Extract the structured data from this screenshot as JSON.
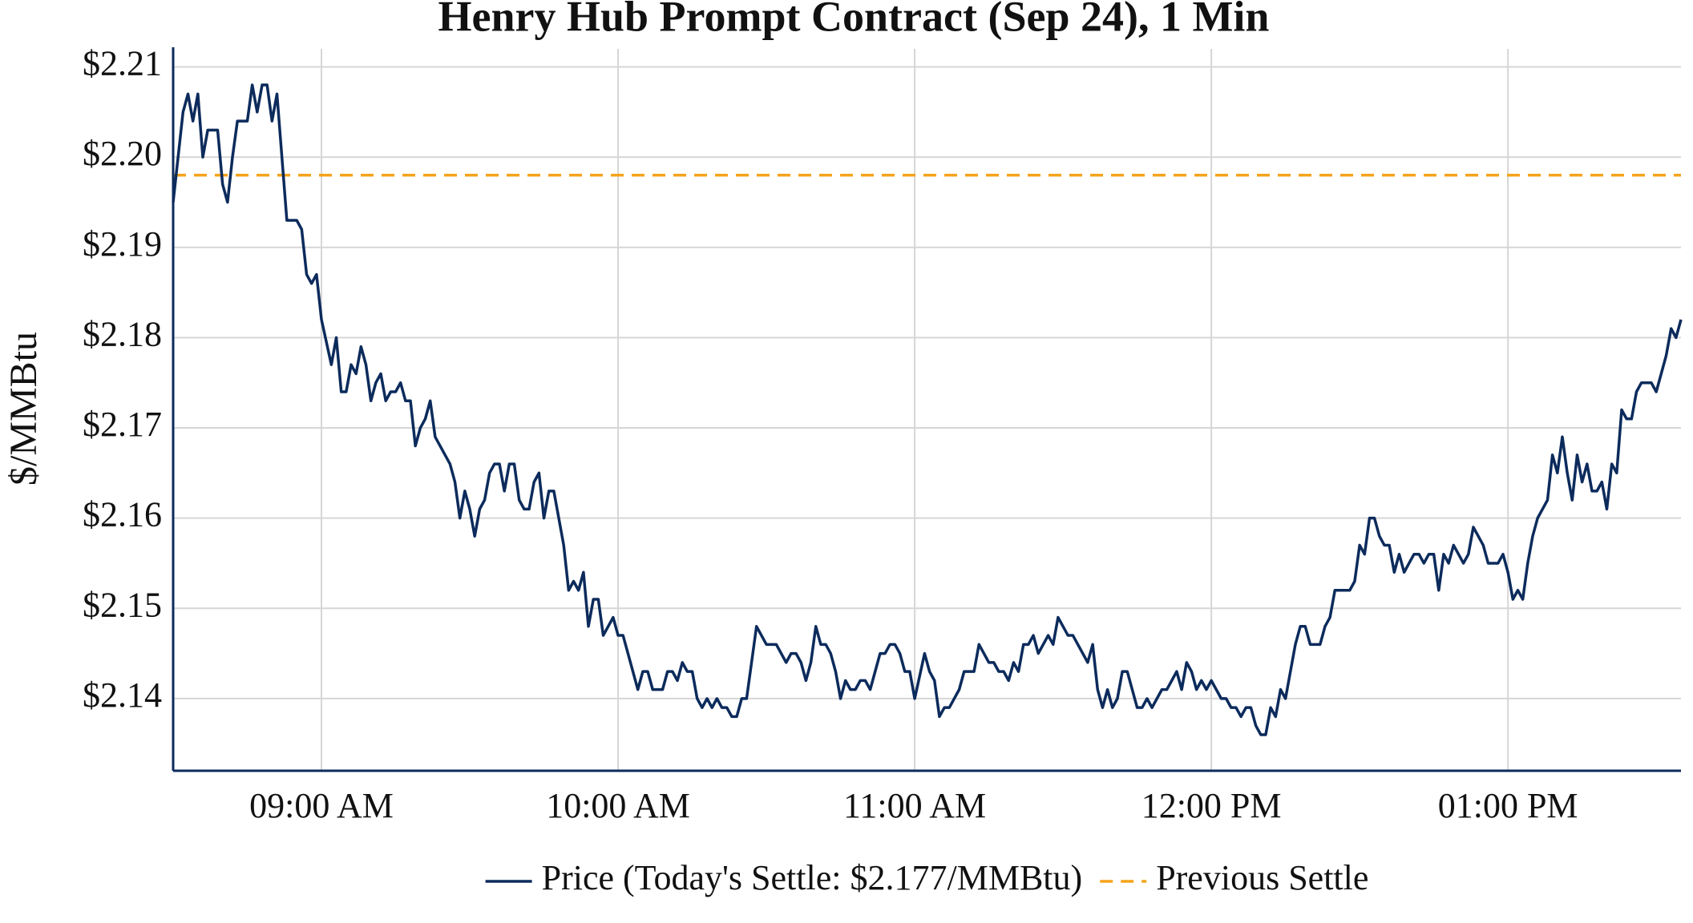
{
  "chart_data": {
    "type": "line",
    "title": "Henry Hub Prompt Contract (Sep 24), 1 Min",
    "y_label": "$/MMBtu",
    "x": [
      "08:30",
      "08:32",
      "08:33",
      "08:34",
      "08:35",
      "08:36",
      "08:37",
      "08:39",
      "08:40",
      "08:41",
      "08:42",
      "08:43",
      "08:45",
      "08:46",
      "08:47",
      "08:48",
      "08:49",
      "08:50",
      "08:51",
      "08:53",
      "08:55",
      "08:56",
      "08:57",
      "08:58",
      "08:59",
      "09:00",
      "09:02",
      "09:03",
      "09:04",
      "09:05",
      "09:06",
      "09:07",
      "09:08",
      "09:09",
      "09:10",
      "09:11",
      "09:12",
      "09:13",
      "09:14",
      "09:15",
      "09:16",
      "09:17",
      "09:18",
      "09:19",
      "09:20",
      "09:21",
      "09:22",
      "09:23",
      "09:24",
      "09:26",
      "09:27",
      "09:28",
      "09:29",
      "09:30",
      "09:31",
      "09:32",
      "09:33",
      "09:34",
      "09:35",
      "09:36",
      "09:37",
      "09:38",
      "09:39",
      "09:40",
      "09:41",
      "09:42",
      "09:43",
      "09:44",
      "09:45",
      "09:46",
      "09:47",
      "09:49",
      "09:50",
      "09:51",
      "09:52",
      "09:53",
      "09:54",
      "09:55",
      "09:56",
      "09:57",
      "09:59",
      "10:00",
      "10:01",
      "10:02",
      "10:03",
      "10:04",
      "10:05",
      "10:06",
      "10:07",
      "10:09",
      "10:10",
      "10:11",
      "10:12",
      "10:13",
      "10:14",
      "10:15",
      "10:16",
      "10:17",
      "10:18",
      "10:19",
      "10:20",
      "10:21",
      "10:22",
      "10:23",
      "10:24",
      "10:25",
      "10:26",
      "10:28",
      "10:30",
      "10:32",
      "10:34",
      "10:35",
      "10:36",
      "10:37",
      "10:38",
      "10:39",
      "10:40",
      "10:41",
      "10:42",
      "10:43",
      "10:44",
      "10:45",
      "10:46",
      "10:47",
      "10:48",
      "10:49",
      "10:50",
      "10:51",
      "10:52",
      "10:53",
      "10:54",
      "10:55",
      "10:56",
      "10:57",
      "10:58",
      "10:59",
      "11:00",
      "11:02",
      "11:03",
      "11:04",
      "11:05",
      "11:06",
      "11:07",
      "11:09",
      "11:10",
      "11:12",
      "11:13",
      "11:14",
      "11:15",
      "11:16",
      "11:17",
      "11:18",
      "11:19",
      "11:20",
      "11:21",
      "11:22",
      "11:23",
      "11:24",
      "11:25",
      "11:26",
      "11:27",
      "11:28",
      "11:29",
      "11:30",
      "11:31",
      "11:32",
      "11:35",
      "11:36",
      "11:37",
      "11:38",
      "11:39",
      "11:40",
      "11:41",
      "11:42",
      "11:43",
      "11:45",
      "11:46",
      "11:47",
      "11:48",
      "11:50",
      "11:51",
      "11:52",
      "11:53",
      "11:54",
      "11:55",
      "11:56",
      "11:57",
      "11:58",
      "11:59",
      "12:00",
      "12:02",
      "12:03",
      "12:04",
      "12:05",
      "12:06",
      "12:07",
      "12:08",
      "12:09",
      "12:10",
      "12:11",
      "12:12",
      "12:13",
      "12:14",
      "12:15",
      "12:17",
      "12:18",
      "12:19",
      "12:20",
      "12:22",
      "12:23",
      "12:24",
      "12:25",
      "12:27",
      "12:28",
      "12:29",
      "12:30",
      "12:31",
      "12:32",
      "12:33",
      "12:34",
      "12:35",
      "12:36",
      "12:37",
      "12:38",
      "12:39",
      "12:40",
      "12:41",
      "12:42",
      "12:43",
      "12:44",
      "12:45",
      "12:46",
      "12:47",
      "12:48",
      "12:49",
      "12:50",
      "12:51",
      "12:52",
      "12:53",
      "12:54",
      "12:55",
      "12:56",
      "12:58",
      "12:59",
      "13:00",
      "13:01",
      "13:02",
      "13:03",
      "13:04",
      "13:05",
      "13:06",
      "13:08",
      "13:09",
      "13:10",
      "13:11",
      "13:12",
      "13:13",
      "13:14",
      "13:15",
      "13:16",
      "13:17",
      "13:18",
      "13:19",
      "13:20",
      "13:21",
      "13:22",
      "13:23",
      "13:24",
      "13:25",
      "13:26",
      "13:27",
      "13:29",
      "13:30",
      "13:32",
      "13:33",
      "13:34",
      "13:35"
    ],
    "series": [
      {
        "name": "Price (Today's Settle: $2.177/MMBtu)",
        "color": "#0c2b5c",
        "values": [
          2.195,
          2.205,
          2.207,
          2.204,
          2.207,
          2.2,
          2.203,
          2.203,
          2.197,
          2.195,
          2.2,
          2.204,
          2.204,
          2.208,
          2.205,
          2.208,
          2.208,
          2.204,
          2.207,
          2.193,
          2.193,
          2.192,
          2.187,
          2.186,
          2.187,
          2.182,
          2.177,
          2.18,
          2.174,
          2.174,
          2.177,
          2.176,
          2.179,
          2.177,
          2.173,
          2.175,
          2.176,
          2.173,
          2.174,
          2.174,
          2.175,
          2.173,
          2.173,
          2.168,
          2.17,
          2.171,
          2.173,
          2.169,
          2.168,
          2.166,
          2.164,
          2.16,
          2.163,
          2.161,
          2.158,
          2.161,
          2.162,
          2.165,
          2.166,
          2.166,
          2.163,
          2.166,
          2.166,
          2.162,
          2.161,
          2.161,
          2.164,
          2.165,
          2.16,
          2.163,
          2.163,
          2.157,
          2.152,
          2.153,
          2.152,
          2.154,
          2.148,
          2.151,
          2.151,
          2.147,
          2.149,
          2.147,
          2.147,
          2.145,
          2.143,
          2.141,
          2.143,
          2.143,
          2.141,
          2.141,
          2.143,
          2.143,
          2.142,
          2.144,
          2.143,
          2.143,
          2.14,
          2.139,
          2.14,
          2.139,
          2.14,
          2.139,
          2.139,
          2.138,
          2.138,
          2.14,
          2.14,
          2.148,
          2.146,
          2.146,
          2.144,
          2.145,
          2.145,
          2.144,
          2.142,
          2.144,
          2.148,
          2.146,
          2.146,
          2.145,
          2.143,
          2.14,
          2.142,
          2.141,
          2.141,
          2.142,
          2.142,
          2.141,
          2.143,
          2.145,
          2.145,
          2.146,
          2.146,
          2.145,
          2.143,
          2.143,
          2.14,
          2.145,
          2.143,
          2.142,
          2.138,
          2.139,
          2.139,
          2.141,
          2.143,
          2.143,
          2.146,
          2.145,
          2.144,
          2.144,
          2.143,
          2.143,
          2.142,
          2.144,
          2.143,
          2.146,
          2.146,
          2.147,
          2.145,
          2.146,
          2.147,
          2.146,
          2.149,
          2.148,
          2.147,
          2.147,
          2.144,
          2.146,
          2.141,
          2.139,
          2.141,
          2.139,
          2.14,
          2.143,
          2.143,
          2.139,
          2.139,
          2.14,
          2.139,
          2.141,
          2.141,
          2.142,
          2.143,
          2.141,
          2.144,
          2.143,
          2.141,
          2.142,
          2.141,
          2.142,
          2.14,
          2.14,
          2.139,
          2.139,
          2.138,
          2.139,
          2.139,
          2.137,
          2.136,
          2.136,
          2.139,
          2.138,
          2.141,
          2.14,
          2.146,
          2.148,
          2.148,
          2.146,
          2.146,
          2.148,
          2.149,
          2.152,
          2.152,
          2.152,
          2.153,
          2.157,
          2.156,
          2.16,
          2.16,
          2.158,
          2.157,
          2.157,
          2.154,
          2.156,
          2.154,
          2.155,
          2.156,
          2.156,
          2.155,
          2.156,
          2.156,
          2.152,
          2.156,
          2.155,
          2.157,
          2.156,
          2.155,
          2.156,
          2.159,
          2.158,
          2.157,
          2.155,
          2.155,
          2.156,
          2.154,
          2.151,
          2.152,
          2.151,
          2.155,
          2.158,
          2.16,
          2.162,
          2.167,
          2.165,
          2.169,
          2.165,
          2.162,
          2.167,
          2.164,
          2.166,
          2.163,
          2.163,
          2.164,
          2.161,
          2.166,
          2.165,
          2.172,
          2.171,
          2.171,
          2.174,
          2.175,
          2.175,
          2.174,
          2.178,
          2.181,
          2.18,
          2.182
        ]
      }
    ],
    "reference_line": {
      "name": "Previous Settle",
      "value": 2.198,
      "color": "#f5a31c",
      "dashed": true
    },
    "xlim": [
      "08:30",
      "13:35"
    ],
    "xticks": [
      {
        "value": "09:00",
        "label": "09:00 AM"
      },
      {
        "value": "10:00",
        "label": "10:00 AM"
      },
      {
        "value": "11:00",
        "label": "11:00 AM"
      },
      {
        "value": "12:00",
        "label": "12:00 PM"
      },
      {
        "value": "13:00",
        "label": "01:00 PM"
      }
    ],
    "ylim": [
      2.132,
      2.212
    ],
    "yticks": [
      {
        "value": 2.14,
        "label": "$2.14"
      },
      {
        "value": 2.15,
        "label": "$2.15"
      },
      {
        "value": 2.16,
        "label": "$2.16"
      },
      {
        "value": 2.17,
        "label": "$2.17"
      },
      {
        "value": 2.18,
        "label": "$2.18"
      },
      {
        "value": 2.19,
        "label": "$2.19"
      },
      {
        "value": 2.2,
        "label": "$2.20"
      },
      {
        "value": 2.21,
        "label": "$2.21"
      }
    ],
    "grid": true,
    "legend": "bottom"
  }
}
